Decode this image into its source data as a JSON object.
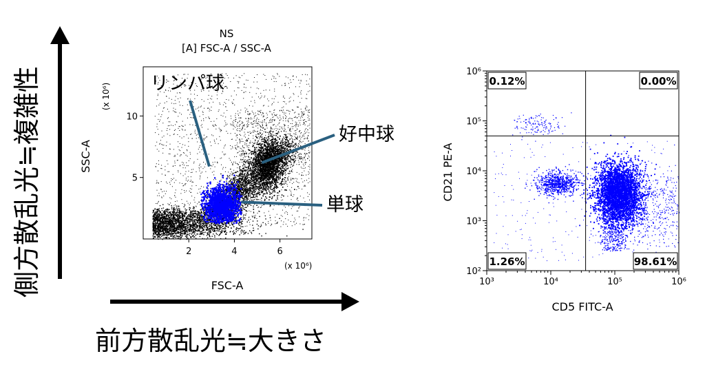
{
  "figure": {
    "y_caption": "側方散乱光≒複雑性",
    "x_caption": "前方散乱光≒大きさ"
  },
  "chart_data": [
    {
      "type": "scatter",
      "title": "NS",
      "subtitle": "[A] FSC-A / SSC-A",
      "xlabel": "FSC-A",
      "ylabel": "SSC-A",
      "x_multiplier": "(x 10⁶)",
      "y_multiplier": "(x 10⁶)",
      "xlim": [
        0,
        7.4
      ],
      "ylim": [
        0,
        14
      ],
      "x_ticks": [
        2,
        4,
        6
      ],
      "y_ticks": [
        5,
        10
      ],
      "grid": false,
      "populations": [
        {
          "name": "リンパ球",
          "center": [
            3.4,
            2.8
          ],
          "gated": true,
          "color": "#0000ff"
        },
        {
          "name": "単球",
          "center": [
            4.7,
            3.5
          ],
          "gated": false,
          "color": "#000000"
        },
        {
          "name": "好中球",
          "center": [
            5.5,
            5.8
          ],
          "gated": false,
          "color": "#000000"
        }
      ],
      "annotations": [
        {
          "text": "リンパ球",
          "points_to": [
            2.9,
            5.9
          ]
        },
        {
          "text": "好中球",
          "points_to": [
            5.2,
            6.2
          ]
        },
        {
          "text": "単球",
          "points_to": [
            4.3,
            3.0
          ]
        }
      ],
      "annotation_line_color": "#2a6080"
    },
    {
      "type": "scatter",
      "xlabel": "CD5 FITC-A",
      "ylabel": "CD21 PE-A",
      "x_scale": "log",
      "y_scale": "log",
      "xlim": [
        1000,
        1000000
      ],
      "ylim": [
        100,
        1000000
      ],
      "x_ticks": [
        "10³",
        "10⁴",
        "10⁵",
        "10⁶"
      ],
      "y_ticks": [
        "10²",
        "10³",
        "10⁴",
        "10⁵",
        "10⁶"
      ],
      "gate_x": 35000,
      "gate_y": 50000,
      "point_color": "#0000ff",
      "quadrants": [
        {
          "position": "top-left",
          "value": "0.12%"
        },
        {
          "position": "top-right",
          "value": "0.00%"
        },
        {
          "position": "bottom-left",
          "value": "1.26%"
        },
        {
          "position": "bottom-right",
          "value": "98.61%"
        }
      ]
    }
  ]
}
